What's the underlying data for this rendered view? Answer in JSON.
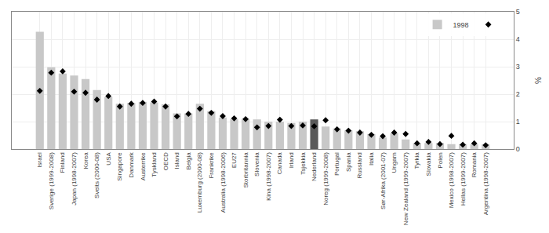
{
  "chart_data": {
    "type": "bar",
    "categories": [
      "Israel",
      "Sverige (1999-2008)",
      "Finland",
      "Japan (1998-2007)",
      "Korea",
      "Sveits (2000-08)",
      "USA",
      "Singapore",
      "Danmark",
      "Austerrike",
      "Tyskland",
      "OECD",
      "Island",
      "Belgia",
      "Luxemburg (2000-08)",
      "Frankrike",
      "Australia (1998-2006)",
      "EU27",
      "Storbritannia",
      "Slovenia",
      "Kina (1998-2007)",
      "Canada",
      "Irland",
      "Tsjekkia",
      "Nederland",
      "Noreg (1999-2008)",
      "Portugal",
      "Spania",
      "Russland",
      "Italia",
      "Sør-Afrika (2001-07)",
      "Ungarn",
      "New Zealand (1999-2007)",
      "Tyrkia",
      "Slovakia",
      "Polen",
      "Mexico (1998-2007)",
      "Hellas (1999-2007)",
      "Romania",
      "Argentina (1998-2007)"
    ],
    "series": [
      {
        "name": "1998",
        "type": "bar",
        "colors": [
          "#c8c8c8",
          "#c8c8c8",
          "#c8c8c8",
          "#c8c8c8",
          "#c8c8c8",
          "#c8c8c8",
          "#c8c8c8",
          "#c8c8c8",
          "#c8c8c8",
          "#c8c8c8",
          "#c8c8c8",
          "#c8c8c8",
          "#c8c8c8",
          "#c8c8c8",
          "#c8c8c8",
          "#c8c8c8",
          "#c8c8c8",
          "#c8c8c8",
          "#c8c8c8",
          "#c8c8c8",
          "#c8c8c8",
          "#c8c8c8",
          "#c8c8c8",
          "#c8c8c8",
          "#5a5a5a",
          "#c8c8c8",
          "#c8c8c8",
          "#c8c8c8",
          "#c8c8c8",
          "#c8c8c8",
          "#c8c8c8",
          "#c8c8c8",
          "#c8c8c8",
          "#c8c8c8",
          "#c8c8c8",
          "#c8c8c8",
          "#c8c8c8",
          "#c8c8c8",
          "#c8c8c8",
          "#c8c8c8"
        ],
        "values": [
          4.27,
          2.98,
          2.75,
          2.68,
          2.55,
          2.15,
          1.9,
          1.65,
          1.68,
          1.72,
          1.7,
          1.63,
          1.3,
          1.3,
          1.65,
          1.38,
          1.15,
          1.1,
          1.1,
          1.08,
          1.0,
          1.0,
          0.95,
          1.0,
          1.08,
          0.82,
          0.75,
          0.68,
          0.65,
          0.55,
          0.42,
          0.58,
          0.35,
          0.22,
          0.22,
          0.22,
          0.18,
          0.18,
          0.18,
          0.17
        ]
      },
      {
        "type": "scatter",
        "marker": "diamond",
        "color": "#000000",
        "values": [
          2.12,
          2.78,
          2.83,
          2.09,
          2.05,
          1.8,
          1.93,
          1.55,
          1.65,
          1.68,
          1.73,
          1.55,
          1.19,
          1.28,
          1.47,
          1.32,
          1.2,
          1.12,
          1.09,
          0.79,
          0.84,
          1.07,
          0.84,
          0.86,
          0.83,
          1.05,
          0.72,
          0.67,
          0.6,
          0.52,
          0.47,
          0.6,
          0.55,
          0.21,
          0.26,
          0.18,
          0.48,
          0.16,
          0.21,
          0.14
        ]
      }
    ],
    "ylabel": "%",
    "ylim": [
      0,
      5
    ],
    "yticks": [
      0,
      1,
      2,
      3,
      4,
      5
    ],
    "grid": true,
    "legend": "upper right"
  }
}
